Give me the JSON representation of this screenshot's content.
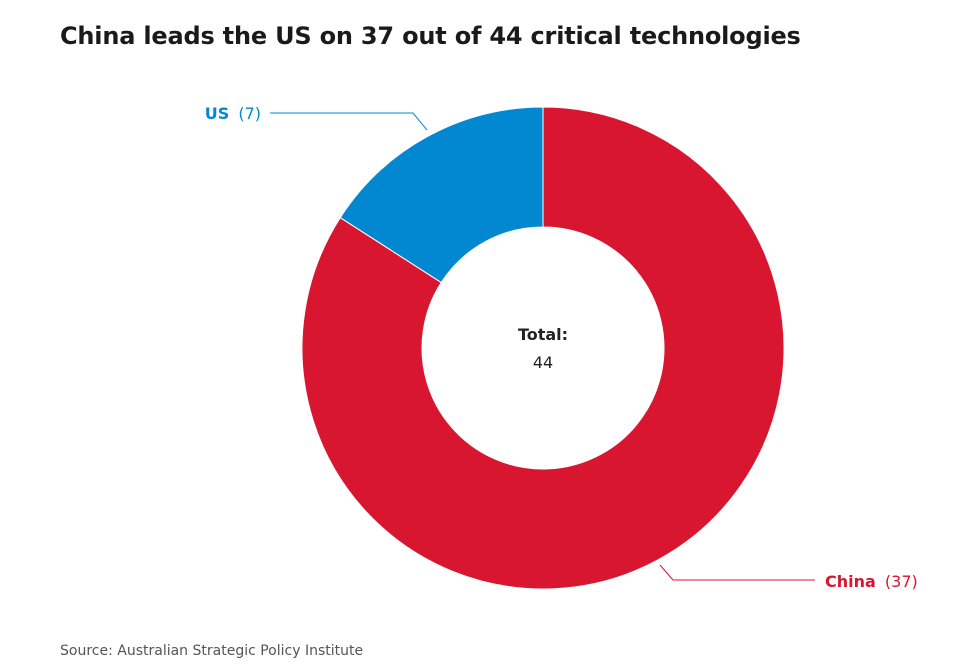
{
  "chart_data": {
    "type": "pie",
    "variant": "donut",
    "title": "China leads the US on 37 out of 44 critical technologies",
    "slices": [
      {
        "name": "US",
        "value": 7,
        "count_label": "(7)",
        "color": "#0288d1"
      },
      {
        "name": "China",
        "value": 37,
        "count_label": "(37)",
        "color": "#d91630"
      }
    ],
    "center_label": "Total:",
    "center_value": "44",
    "source": "Source: Australian Strategic Policy Institute"
  }
}
